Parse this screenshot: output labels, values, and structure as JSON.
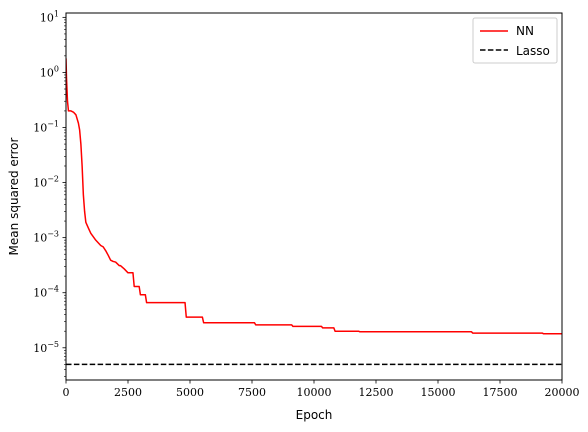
{
  "chart_data": {
    "type": "line",
    "title": "",
    "xlabel": "Epoch",
    "ylabel": "Mean squared error",
    "xlim": [
      0,
      20000
    ],
    "ylim": [
      2.6e-06,
      12
    ],
    "yscale": "log",
    "grid": false,
    "legend_position": "top-right",
    "x_ticks": [
      0,
      2500,
      5000,
      7500,
      10000,
      12500,
      15000,
      17500,
      20000
    ],
    "x_tick_labels": [
      "0",
      "2500",
      "5000",
      "7500",
      "10000",
      "12500",
      "15000",
      "17500",
      "20000"
    ],
    "y_ticks": [
      1e-05,
      0.0001,
      0.001,
      0.01,
      0.1,
      1,
      10
    ],
    "y_tick_bases": [
      "10",
      "10",
      "10",
      "10",
      "10",
      "10",
      "10"
    ],
    "y_tick_exponents": [
      "−5",
      "−4",
      "−3",
      "−2",
      "−1",
      "0",
      "1"
    ],
    "series": [
      {
        "name": "NN",
        "color": "#ff0000",
        "dash": "solid",
        "x": [
          0,
          20,
          60,
          100,
          200,
          300,
          400,
          500,
          550,
          600,
          650,
          700,
          750,
          800,
          900,
          1000,
          1200,
          1400,
          1500,
          1600,
          1700,
          1800,
          1900,
          2000,
          2150,
          2200,
          2350,
          2500,
          2550,
          2700,
          2750,
          2950,
          3000,
          3200,
          3250,
          3400,
          3450,
          4800,
          4850,
          5500,
          5550,
          7600,
          7650,
          9100,
          9150,
          10300,
          10350,
          10800,
          10850,
          11800,
          11850,
          16350,
          16400,
          19200,
          19250,
          20000
        ],
        "y": [
          1.8,
          0.8,
          0.3,
          0.2,
          0.2,
          0.19,
          0.17,
          0.12,
          0.09,
          0.05,
          0.02,
          0.006,
          0.003,
          0.0019,
          0.0015,
          0.0012,
          0.0009,
          0.00072,
          0.00068,
          0.00058,
          0.00048,
          0.00039,
          0.00037,
          0.00036,
          0.00031,
          0.00031,
          0.00027,
          0.00023,
          0.00023,
          0.00023,
          0.00013,
          0.00013,
          9.2e-05,
          9.2e-05,
          6.6e-05,
          6.6e-05,
          6.6e-05,
          6.6e-05,
          3.6e-05,
          3.6e-05,
          2.85e-05,
          2.85e-05,
          2.6e-05,
          2.6e-05,
          2.45e-05,
          2.45e-05,
          2.3e-05,
          2.3e-05,
          2e-05,
          2e-05,
          1.95e-05,
          1.95e-05,
          1.85e-05,
          1.85e-05,
          1.8e-05,
          1.8e-05
        ]
      },
      {
        "name": "Lasso",
        "color": "#000000",
        "dash": "dashed",
        "x": [
          0,
          20000
        ],
        "y": [
          5e-06,
          5e-06
        ]
      }
    ]
  }
}
